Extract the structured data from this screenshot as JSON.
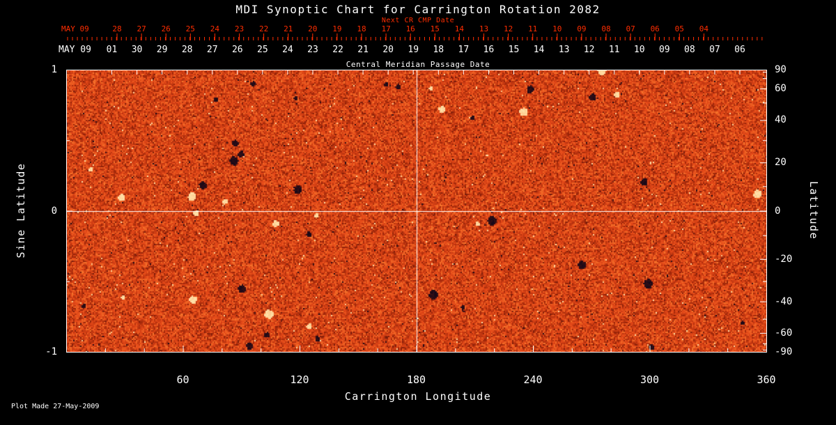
{
  "title": "MDI Synoptic Chart for Carrington Rotation 2082",
  "plot_made": "Plot Made 27-May-2009",
  "colors": {
    "background": "#000000",
    "axis": "#ffffff",
    "top_axis_red": "#ff2d00",
    "magnetogram_base_orange": "#e8481c",
    "magnetogram_light_speckle": "#ffe1aa",
    "magnetogram_dark_speckle": "#140819"
  },
  "chart_data": {
    "type": "heatmap",
    "title": "MDI Synoptic Chart for Carrington Rotation 2082",
    "description": "Solar magnetogram synoptic map shown as fine-grained orange noise texture with sparse dark and bright speckles; white crosshair at longitude 180 and latitude 0",
    "xlabel": "Carrington Longitude",
    "ylabel_left": "Sine Latitude",
    "ylabel_right": "Latitude",
    "xlim": [
      0,
      360
    ],
    "ylim_sine": [
      -1,
      1
    ],
    "x_ticks": [
      60,
      120,
      180,
      240,
      300,
      360
    ],
    "x_minor_step": 20,
    "left_ticks": [
      "1",
      "0",
      "-1"
    ],
    "left_tick_sines": [
      1,
      0,
      -1
    ],
    "right_ticks": [
      90,
      60,
      40,
      20,
      0,
      -20,
      -40,
      -60,
      -90
    ],
    "right_minor_ticks": [
      80,
      70,
      50,
      30,
      10,
      -10,
      -30,
      -50,
      -70,
      -80
    ],
    "crosshair": {
      "longitude": 180,
      "latitude": 0
    },
    "top_axis_red": {
      "label": "Next CR CMP Date",
      "prefix": "MAY 09",
      "ticks": [
        "28",
        "27",
        "26",
        "25",
        "24",
        "23",
        "22",
        "21",
        "20",
        "19",
        "18",
        "17",
        "16",
        "15",
        "14",
        "13",
        "12",
        "11",
        "10",
        "09",
        "08",
        "07",
        "06",
        "05",
        "04"
      ]
    },
    "top_axis_white": {
      "label": "Central Meridian Passage Date",
      "prefix": "MAY 09",
      "ticks": [
        "01",
        "30",
        "29",
        "28",
        "27",
        "26",
        "25",
        "24",
        "23",
        "22",
        "21",
        "20",
        "19",
        "18",
        "17",
        "16",
        "15",
        "14",
        "13",
        "12",
        "11",
        "10",
        "09",
        "08",
        "07",
        "06"
      ]
    }
  }
}
